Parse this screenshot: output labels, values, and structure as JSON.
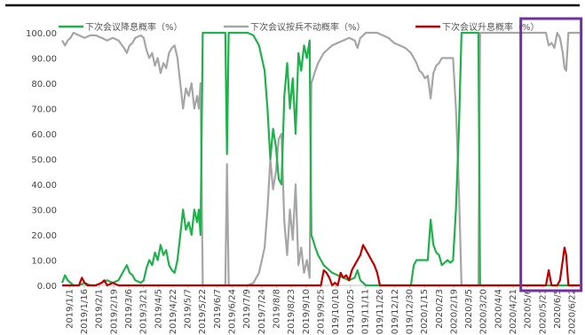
{
  "chart_data": {
    "type": "line",
    "title": "",
    "xlabel": "",
    "ylabel": "",
    "ylim": [
      0,
      100
    ],
    "y_tick_labels": [
      "0.00",
      "10.00",
      "20.00",
      "30.00",
      "40.00",
      "50.00",
      "60.00",
      "70.00",
      "80.00",
      "90.00",
      "100.00"
    ],
    "x_tick_labels": [
      "2019/1/1",
      "2019/1/16",
      "2019/2/1",
      "2019/2/19",
      "2019/3/6",
      "2019/3/21",
      "2019/4/5",
      "2019/4/22",
      "2019/5/7",
      "2019/5/22",
      "2019/6/7",
      "2019/6/24",
      "2019/7/9",
      "2019/7/24",
      "2019/8/8",
      "2019/8/23",
      "2019/9/10",
      "2019/9/25",
      "2019/10/10",
      "2019/10/25",
      "2019/11/11",
      "2019/11/26",
      "2019/12/12",
      "2019/12/30",
      "2020/1/15",
      "2020/2/3",
      "2020/2/19",
      "2020/3/5",
      "2020/3/20",
      "2020/4/4",
      "2020/4/21",
      "2020/5/6",
      "2020/5/21",
      "2020/6/5",
      "2020/6/22"
    ],
    "legend_position": "top",
    "grid": false,
    "highlight_box": {
      "from_x_label": "2020/5/6",
      "to_x_label": "2020/6/22",
      "color": "#7030a0"
    },
    "series": [
      {
        "name": "下次会议降息概率（%）",
        "color": "#1fb14b",
        "points": [
          [
            0,
            1
          ],
          [
            0.5,
            4
          ],
          [
            1,
            2
          ],
          [
            1.5,
            1
          ],
          [
            2,
            0
          ],
          [
            3,
            0
          ],
          [
            4,
            1
          ],
          [
            5,
            0
          ],
          [
            6,
            0
          ],
          [
            7,
            1
          ],
          [
            8,
            2
          ],
          [
            9,
            1
          ],
          [
            10,
            2
          ],
          [
            11,
            6
          ],
          [
            11.5,
            8
          ],
          [
            12,
            5
          ],
          [
            12.5,
            4
          ],
          [
            13,
            2
          ],
          [
            14,
            1
          ],
          [
            14.5,
            2
          ],
          [
            15,
            7
          ],
          [
            15.5,
            10
          ],
          [
            16,
            8
          ],
          [
            16.5,
            13
          ],
          [
            17,
            10
          ],
          [
            17.5,
            16
          ],
          [
            18,
            12
          ],
          [
            18.5,
            14
          ],
          [
            19,
            8
          ],
          [
            19.5,
            6
          ],
          [
            20,
            5
          ],
          [
            20.5,
            10
          ],
          [
            21,
            20
          ],
          [
            21.5,
            30
          ],
          [
            22,
            22
          ],
          [
            22.5,
            25
          ],
          [
            23,
            20
          ],
          [
            23.5,
            30
          ],
          [
            24,
            25
          ],
          [
            24.3,
            30
          ],
          [
            24.6,
            20
          ],
          [
            25,
            100
          ],
          [
            26,
            100
          ],
          [
            27,
            100
          ],
          [
            28,
            100
          ],
          [
            29,
            100
          ],
          [
            29.3,
            52
          ],
          [
            29.6,
            100
          ],
          [
            30,
            100
          ],
          [
            31,
            100
          ],
          [
            32,
            100
          ],
          [
            33,
            100
          ],
          [
            34,
            99
          ],
          [
            35,
            95
          ],
          [
            36,
            85
          ],
          [
            36.5,
            70
          ],
          [
            37,
            50
          ],
          [
            37.5,
            62
          ],
          [
            38,
            55
          ],
          [
            38.5,
            42
          ],
          [
            39,
            40
          ],
          [
            39.5,
            75
          ],
          [
            40,
            88
          ],
          [
            40.5,
            70
          ],
          [
            41,
            82
          ],
          [
            41.5,
            60
          ],
          [
            42,
            92
          ],
          [
            42.5,
            85
          ],
          [
            43,
            95
          ],
          [
            43.5,
            90
          ],
          [
            44,
            97
          ],
          [
            44.3,
            20
          ],
          [
            44.6,
            18
          ],
          [
            45,
            15
          ],
          [
            45.5,
            12
          ],
          [
            46,
            10
          ],
          [
            46.5,
            8
          ],
          [
            47,
            7
          ],
          [
            47.5,
            6
          ],
          [
            48,
            5
          ],
          [
            49,
            4
          ],
          [
            50,
            3
          ],
          [
            51,
            2
          ],
          [
            52,
            3
          ],
          [
            52.5,
            6
          ],
          [
            53,
            2
          ],
          [
            54,
            0
          ],
          [
            55,
            0
          ],
          [
            56,
            0
          ],
          [
            57,
            0
          ],
          [
            58,
            0
          ],
          [
            59,
            0
          ],
          [
            60,
            0
          ],
          [
            61,
            0
          ],
          [
            62,
            0
          ],
          [
            62.5,
            8
          ],
          [
            63,
            10
          ],
          [
            63.5,
            10
          ],
          [
            64,
            10
          ],
          [
            64.5,
            10
          ],
          [
            65,
            10
          ],
          [
            65.5,
            26
          ],
          [
            66,
            16
          ],
          [
            66.5,
            13
          ],
          [
            67,
            12
          ],
          [
            67.5,
            8
          ],
          [
            68,
            9
          ],
          [
            68.5,
            10
          ],
          [
            69,
            9
          ],
          [
            69.5,
            10
          ],
          [
            70,
            30
          ],
          [
            70.5,
            60
          ],
          [
            71,
            100
          ],
          [
            72,
            100
          ],
          [
            73,
            100
          ],
          [
            74,
            100
          ],
          [
            74.3,
            0
          ],
          [
            75,
            0
          ],
          [
            76,
            0
          ],
          [
            78,
            0
          ],
          [
            80,
            0
          ],
          [
            82,
            0
          ],
          [
            84,
            0
          ],
          [
            86,
            0
          ],
          [
            88,
            0
          ],
          [
            90,
            0
          ],
          [
            92,
            0
          ]
        ]
      },
      {
        "name": "下次会议按兵不动概率（%）",
        "color": "#a6a6a6",
        "points": [
          [
            0,
            97
          ],
          [
            0.5,
            95
          ],
          [
            1,
            97
          ],
          [
            1.5,
            98
          ],
          [
            2,
            100
          ],
          [
            3,
            99
          ],
          [
            4,
            98
          ],
          [
            5,
            99
          ],
          [
            6,
            99
          ],
          [
            7,
            98
          ],
          [
            8,
            97
          ],
          [
            9,
            98
          ],
          [
            10,
            97
          ],
          [
            11,
            94
          ],
          [
            11.5,
            92
          ],
          [
            12,
            95
          ],
          [
            12.5,
            96
          ],
          [
            13,
            98
          ],
          [
            14,
            99
          ],
          [
            14.5,
            98
          ],
          [
            15,
            93
          ],
          [
            15.5,
            90
          ],
          [
            16,
            92
          ],
          [
            16.5,
            87
          ],
          [
            17,
            90
          ],
          [
            17.5,
            84
          ],
          [
            18,
            88
          ],
          [
            18.5,
            86
          ],
          [
            19,
            92
          ],
          [
            19.5,
            94
          ],
          [
            20,
            95
          ],
          [
            20.5,
            90
          ],
          [
            21,
            80
          ],
          [
            21.5,
            70
          ],
          [
            22,
            78
          ],
          [
            22.5,
            75
          ],
          [
            23,
            80
          ],
          [
            23.5,
            70
          ],
          [
            24,
            75
          ],
          [
            24.3,
            70
          ],
          [
            24.6,
            80
          ],
          [
            25,
            0
          ],
          [
            26,
            0
          ],
          [
            27,
            0
          ],
          [
            28,
            0
          ],
          [
            29,
            0
          ],
          [
            29.3,
            48
          ],
          [
            29.6,
            0
          ],
          [
            30,
            0
          ],
          [
            31,
            0
          ],
          [
            32,
            0
          ],
          [
            33,
            0
          ],
          [
            34,
            1
          ],
          [
            35,
            5
          ],
          [
            36,
            15
          ],
          [
            36.5,
            30
          ],
          [
            37,
            50
          ],
          [
            37.5,
            38
          ],
          [
            38,
            45
          ],
          [
            38.5,
            58
          ],
          [
            39,
            60
          ],
          [
            39.5,
            25
          ],
          [
            40,
            12
          ],
          [
            40.5,
            30
          ],
          [
            41,
            18
          ],
          [
            41.5,
            40
          ],
          [
            42,
            8
          ],
          [
            42.5,
            15
          ],
          [
            43,
            5
          ],
          [
            43.5,
            10
          ],
          [
            44,
            3
          ],
          [
            44.3,
            80
          ],
          [
            44.6,
            82
          ],
          [
            45,
            85
          ],
          [
            45.5,
            88
          ],
          [
            46,
            90
          ],
          [
            46.5,
            92
          ],
          [
            47,
            93
          ],
          [
            47.5,
            94
          ],
          [
            48,
            95
          ],
          [
            49,
            96
          ],
          [
            50,
            97
          ],
          [
            51,
            98
          ],
          [
            52,
            97
          ],
          [
            52.5,
            94
          ],
          [
            53,
            98
          ],
          [
            54,
            100
          ],
          [
            55,
            100
          ],
          [
            56,
            100
          ],
          [
            57,
            99
          ],
          [
            58,
            98
          ],
          [
            59,
            96
          ],
          [
            60,
            95
          ],
          [
            61,
            94
          ],
          [
            62,
            92
          ],
          [
            62.5,
            90
          ],
          [
            63,
            88
          ],
          [
            63.5,
            85
          ],
          [
            64,
            84
          ],
          [
            64.5,
            82
          ],
          [
            65,
            83
          ],
          [
            65.5,
            74
          ],
          [
            66,
            84
          ],
          [
            66.5,
            87
          ],
          [
            67,
            88
          ],
          [
            67.5,
            90
          ],
          [
            68,
            90
          ],
          [
            68.5,
            90
          ],
          [
            69,
            90
          ],
          [
            69.5,
            90
          ],
          [
            70,
            70
          ],
          [
            70.5,
            40
          ],
          [
            71,
            0
          ],
          [
            72,
            0
          ],
          [
            73,
            0
          ],
          [
            74,
            0
          ],
          [
            74.3,
            100
          ],
          [
            75,
            100
          ],
          [
            76,
            100
          ],
          [
            78,
            100
          ],
          [
            80,
            100
          ],
          [
            82,
            100
          ],
          [
            84,
            100
          ],
          [
            86,
            100
          ],
          [
            86.5,
            95
          ],
          [
            87,
            96
          ],
          [
            87.5,
            94
          ],
          [
            88,
            100
          ],
          [
            88.5,
            98
          ],
          [
            89,
            92
          ],
          [
            89.3,
            86
          ],
          [
            89.6,
            85
          ],
          [
            90,
            100
          ],
          [
            91,
            100
          ],
          [
            92,
            100
          ]
        ]
      },
      {
        "name": "下次会议升息概率（%）",
        "color": "#c00000",
        "points": [
          [
            0,
            0
          ],
          [
            2,
            0
          ],
          [
            3,
            0
          ],
          [
            3.5,
            3
          ],
          [
            4,
            1
          ],
          [
            4.5,
            0
          ],
          [
            6,
            0
          ],
          [
            7,
            1
          ],
          [
            7.5,
            2
          ],
          [
            8,
            0
          ],
          [
            9,
            1
          ],
          [
            10,
            0
          ],
          [
            12,
            0
          ],
          [
            14,
            0
          ],
          [
            16,
            0
          ],
          [
            20,
            0
          ],
          [
            25,
            0
          ],
          [
            30,
            0
          ],
          [
            35,
            0
          ],
          [
            40,
            0
          ],
          [
            44,
            0
          ],
          [
            45,
            0
          ],
          [
            46,
            0
          ],
          [
            46.5,
            6
          ],
          [
            47,
            5
          ],
          [
            47.5,
            3
          ],
          [
            48,
            0
          ],
          [
            48.5,
            1
          ],
          [
            49,
            0
          ],
          [
            49.5,
            5
          ],
          [
            50,
            3
          ],
          [
            50.5,
            4
          ],
          [
            51,
            2
          ],
          [
            51.5,
            6
          ],
          [
            52,
            8
          ],
          [
            52.5,
            10
          ],
          [
            53,
            12
          ],
          [
            53.5,
            16
          ],
          [
            54,
            14
          ],
          [
            54.5,
            12
          ],
          [
            55,
            10
          ],
          [
            55.5,
            8
          ],
          [
            56,
            5
          ],
          [
            56.5,
            0
          ],
          [
            57,
            0
          ],
          [
            60,
            0
          ],
          [
            64,
            0
          ],
          [
            68,
            0
          ],
          [
            72,
            0
          ],
          [
            76,
            0
          ],
          [
            80,
            0
          ],
          [
            84,
            0
          ],
          [
            85,
            0
          ],
          [
            86,
            0
          ],
          [
            86.5,
            6
          ],
          [
            87,
            0
          ],
          [
            88,
            0
          ],
          [
            88.5,
            2
          ],
          [
            89,
            10
          ],
          [
            89.3,
            15
          ],
          [
            89.6,
            12
          ],
          [
            90,
            0
          ],
          [
            91,
            0
          ],
          [
            92,
            0
          ]
        ]
      }
    ]
  }
}
